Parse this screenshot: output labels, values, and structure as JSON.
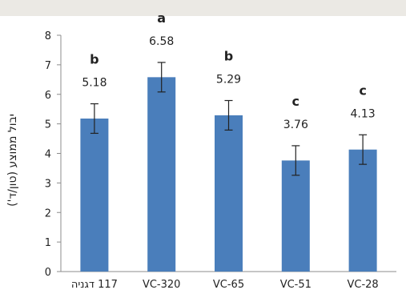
{
  "chart_data": {
    "type": "bar",
    "title": "",
    "xlabel": "",
    "ylabel": "יבול ממוצע (טון/ד')",
    "categories": [
      "117 דגניה",
      "VC-320",
      "VC-65",
      "VC-51",
      "VC-28"
    ],
    "values": [
      5.18,
      6.58,
      5.29,
      3.76,
      4.13
    ],
    "value_labels": [
      "5.18",
      "6.58",
      "5.29",
      "3.76",
      "4.13"
    ],
    "error": [
      0.5,
      0.5,
      0.5,
      0.5,
      0.5
    ],
    "group_letters": [
      "b",
      "a",
      "b",
      "c",
      "c"
    ],
    "ylim": [
      0,
      8
    ],
    "yticks": [
      "0",
      "1",
      "2",
      "3",
      "4",
      "5",
      "6",
      "7",
      "8"
    ],
    "grid": false,
    "legend": "none",
    "colors": {
      "bar": "#4a7ebb",
      "error_bar": "#222222",
      "axis": "#8c8c8c",
      "top_band": "#ebe9e4"
    }
  }
}
